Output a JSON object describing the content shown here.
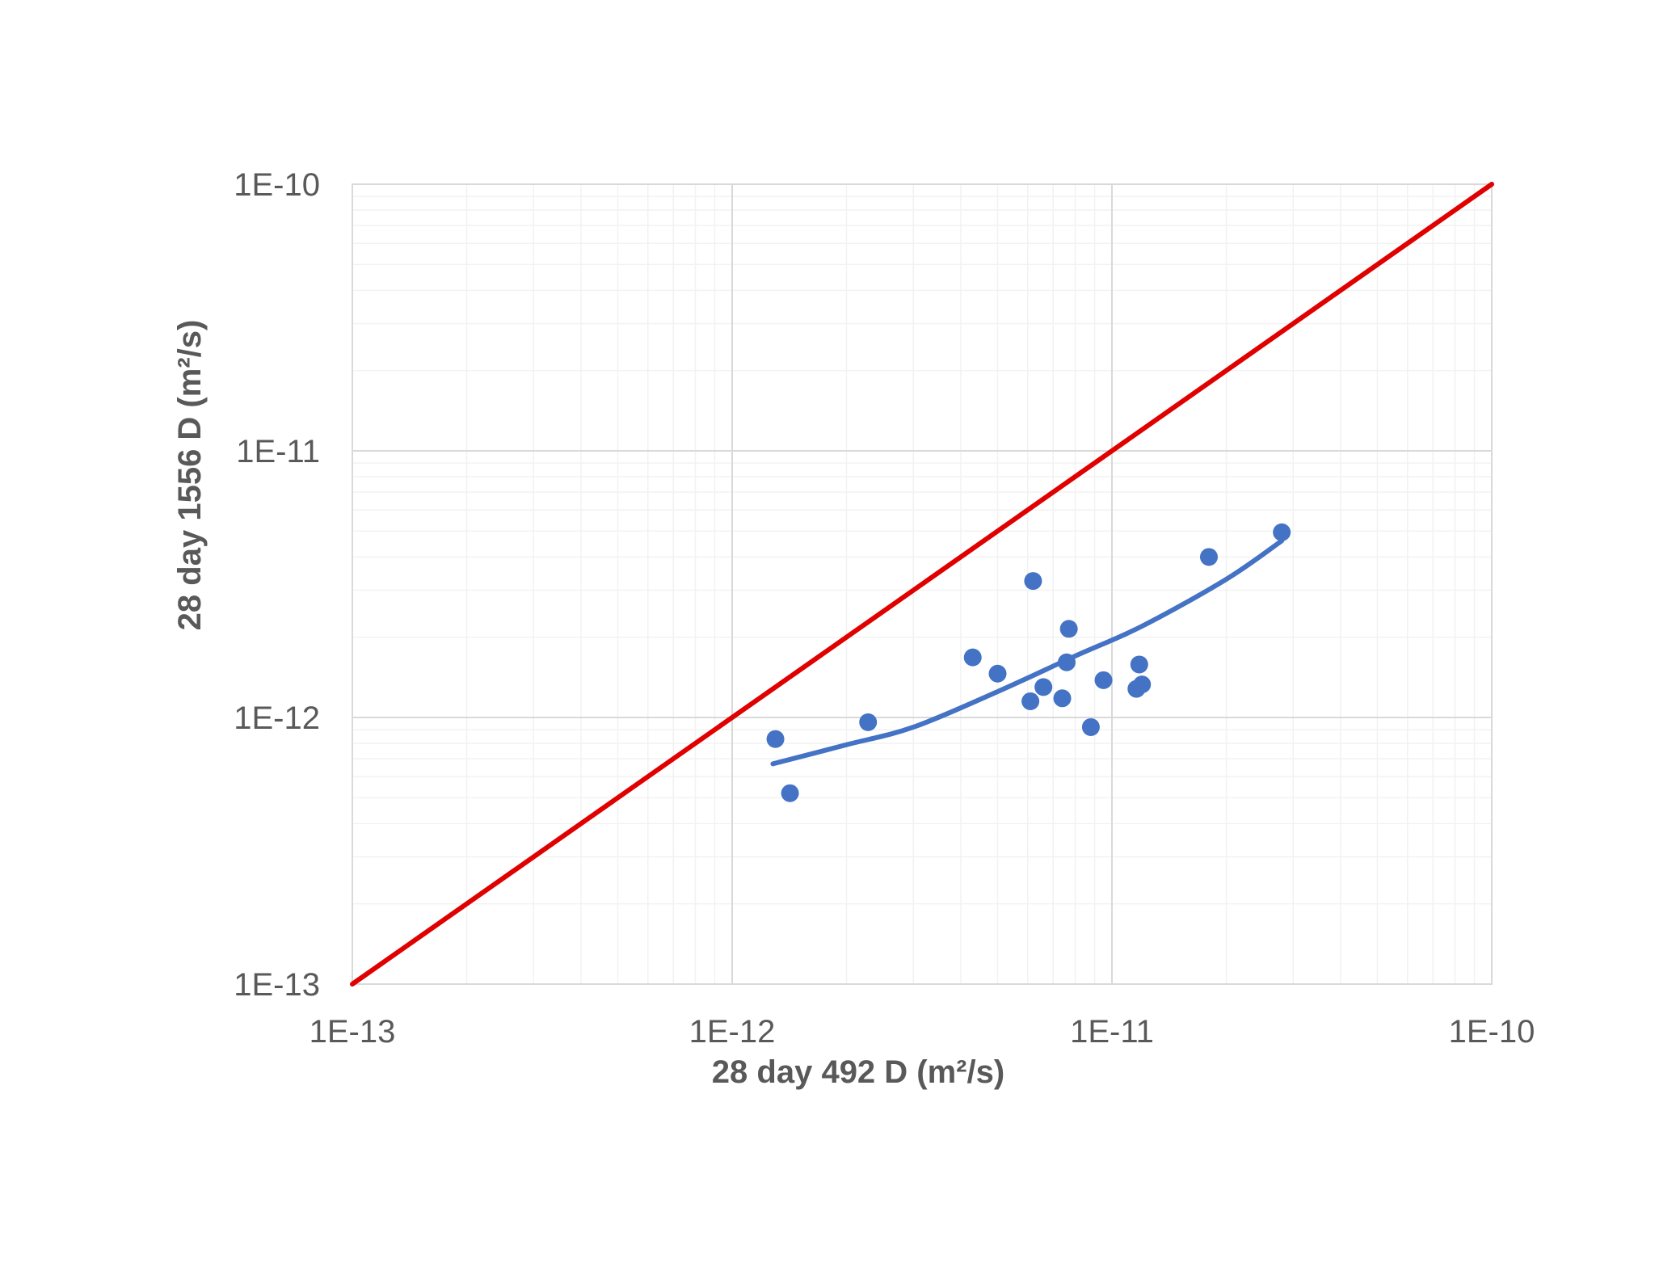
{
  "chart_data": {
    "type": "scatter",
    "title": "",
    "xlabel": "28 day 492 D (m²/s)",
    "ylabel": "28 day 1556 D (m²/s)",
    "x_scale": "log",
    "y_scale": "log",
    "xlim": [
      1e-13,
      1e-10
    ],
    "ylim": [
      1e-13,
      1e-10
    ],
    "x_tick_values": [
      1e-13,
      1e-12,
      1e-11,
      1e-10
    ],
    "y_tick_values": [
      1e-13,
      1e-12,
      1e-11,
      1e-10
    ],
    "x_tick_labels": [
      "1E-13",
      "1E-12",
      "1E-11",
      "1E-10"
    ],
    "y_tick_labels": [
      "1E-13",
      "1E-12",
      "1E-11",
      "1E-10"
    ],
    "grid": true,
    "minor_grid": true,
    "legend": "none",
    "colors": {
      "points": "#4472C4",
      "trendline": "#4472C4",
      "equality_line": "#E00000",
      "major_grid": "#D9D9D9",
      "minor_grid": "#F2F2F2",
      "text": "#595959"
    },
    "series": [
      {
        "kind": "points",
        "points": [
          {
            "x": 1.3e-12,
            "y": 8.3e-13
          },
          {
            "x": 1.42e-12,
            "y": 5.2e-13
          },
          {
            "x": 2.28e-12,
            "y": 9.6e-13
          },
          {
            "x": 4.3e-12,
            "y": 1.68e-12
          },
          {
            "x": 5e-12,
            "y": 1.46e-12
          },
          {
            "x": 6.1e-12,
            "y": 1.15e-12
          },
          {
            "x": 6.2e-12,
            "y": 3.25e-12
          },
          {
            "x": 6.6e-12,
            "y": 1.3e-12
          },
          {
            "x": 7.4e-12,
            "y": 1.18e-12
          },
          {
            "x": 7.6e-12,
            "y": 1.61e-12
          },
          {
            "x": 7.7e-12,
            "y": 2.15e-12
          },
          {
            "x": 8.8e-12,
            "y": 9.2e-13
          },
          {
            "x": 9.5e-12,
            "y": 1.38e-12
          },
          {
            "x": 1.16e-11,
            "y": 1.28e-12
          },
          {
            "x": 1.18e-11,
            "y": 1.58e-12
          },
          {
            "x": 1.2e-11,
            "y": 1.33e-12
          },
          {
            "x": 1.8e-11,
            "y": 4e-12
          },
          {
            "x": 2.8e-11,
            "y": 4.95e-12
          }
        ]
      },
      {
        "kind": "trendline",
        "points": [
          {
            "x": 1.28e-12,
            "y": 6.7e-13
          },
          {
            "x": 2e-12,
            "y": 7.9e-13
          },
          {
            "x": 3e-12,
            "y": 9.2e-13
          },
          {
            "x": 5e-12,
            "y": 1.25e-12
          },
          {
            "x": 8e-12,
            "y": 1.7e-12
          },
          {
            "x": 1.2e-11,
            "y": 2.2e-12
          },
          {
            "x": 2e-11,
            "y": 3.3e-12
          },
          {
            "x": 2.8e-11,
            "y": 4.6e-12
          }
        ]
      },
      {
        "kind": "equality-line",
        "points": [
          {
            "x": 1e-13,
            "y": 1e-13
          },
          {
            "x": 1e-10,
            "y": 1e-10
          }
        ]
      }
    ]
  }
}
